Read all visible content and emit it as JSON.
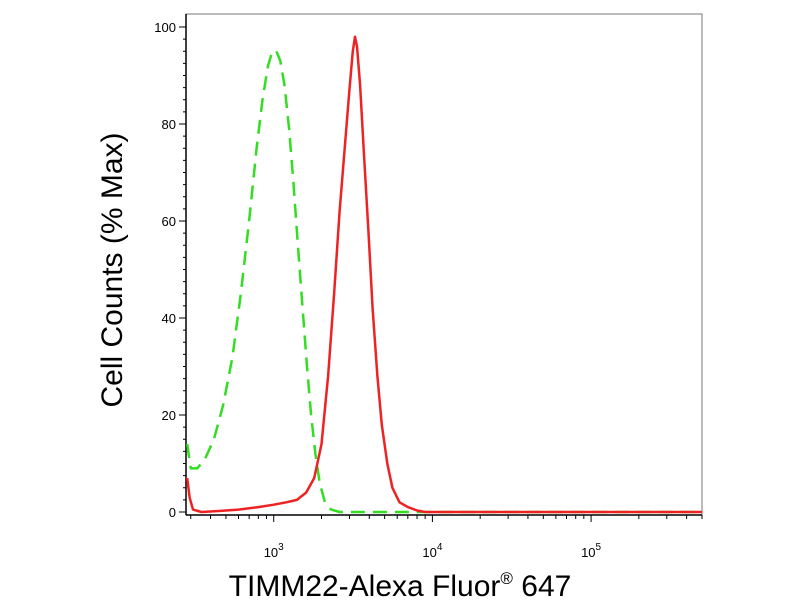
{
  "chart_data": {
    "type": "line",
    "xscale": "log",
    "xlim": [
      280,
      500000
    ],
    "ylim": [
      0,
      100
    ],
    "ylabel": "Cell Counts (% Max)",
    "xlabel_main": "TIMM22-Alexa Fluor",
    "xlabel_sup": "®",
    "xlabel_tail": " 647",
    "yticks": [
      {
        "value": 0,
        "label": "0"
      },
      {
        "value": 20,
        "label": "20"
      },
      {
        "value": 40,
        "label": "40"
      },
      {
        "value": 60,
        "label": "60"
      },
      {
        "value": 80,
        "label": "80"
      },
      {
        "value": 100,
        "label": "100"
      }
    ],
    "xticks": [
      {
        "value": 1000,
        "base": "10",
        "exp": "3"
      },
      {
        "value": 10000,
        "base": "10",
        "exp": "4"
      },
      {
        "value": 100000,
        "base": "10",
        "exp": "5"
      }
    ],
    "grid": false,
    "legend": "none",
    "series": [
      {
        "color": "#33dd22",
        "style": "dashed",
        "points": [
          [
            285,
            14
          ],
          [
            300,
            9
          ],
          [
            330,
            9
          ],
          [
            370,
            11
          ],
          [
            420,
            15
          ],
          [
            480,
            22
          ],
          [
            550,
            32
          ],
          [
            620,
            45
          ],
          [
            700,
            60
          ],
          [
            780,
            75
          ],
          [
            850,
            85
          ],
          [
            920,
            92
          ],
          [
            980,
            95
          ],
          [
            1040,
            95
          ],
          [
            1100,
            93
          ],
          [
            1170,
            88
          ],
          [
            1250,
            79
          ],
          [
            1330,
            68
          ],
          [
            1420,
            55
          ],
          [
            1520,
            42
          ],
          [
            1620,
            30
          ],
          [
            1720,
            20
          ],
          [
            1830,
            12
          ],
          [
            1950,
            6
          ],
          [
            2100,
            2
          ],
          [
            2300,
            0.5
          ],
          [
            2600,
            0
          ],
          [
            4000,
            0
          ],
          [
            10000,
            0
          ],
          [
            50000,
            0
          ],
          [
            500000,
            0
          ]
        ]
      },
      {
        "color": "#ee2222",
        "style": "solid",
        "points": [
          [
            285,
            7
          ],
          [
            295,
            3
          ],
          [
            310,
            0.5
          ],
          [
            350,
            0
          ],
          [
            450,
            0.2
          ],
          [
            600,
            0.5
          ],
          [
            800,
            1
          ],
          [
            1000,
            1.5
          ],
          [
            1200,
            2
          ],
          [
            1400,
            2.5
          ],
          [
            1600,
            4
          ],
          [
            1800,
            7
          ],
          [
            2000,
            14
          ],
          [
            2200,
            28
          ],
          [
            2400,
            45
          ],
          [
            2600,
            62
          ],
          [
            2800,
            75
          ],
          [
            3000,
            87
          ],
          [
            3150,
            95
          ],
          [
            3250,
            98
          ],
          [
            3350,
            96
          ],
          [
            3500,
            88
          ],
          [
            3700,
            74
          ],
          [
            3950,
            58
          ],
          [
            4200,
            42
          ],
          [
            4500,
            28
          ],
          [
            4800,
            18
          ],
          [
            5200,
            10
          ],
          [
            5600,
            5
          ],
          [
            6200,
            2
          ],
          [
            7000,
            1
          ],
          [
            8000,
            0.3
          ],
          [
            9000,
            0
          ],
          [
            50000,
            0
          ],
          [
            500000,
            0
          ]
        ]
      }
    ]
  }
}
